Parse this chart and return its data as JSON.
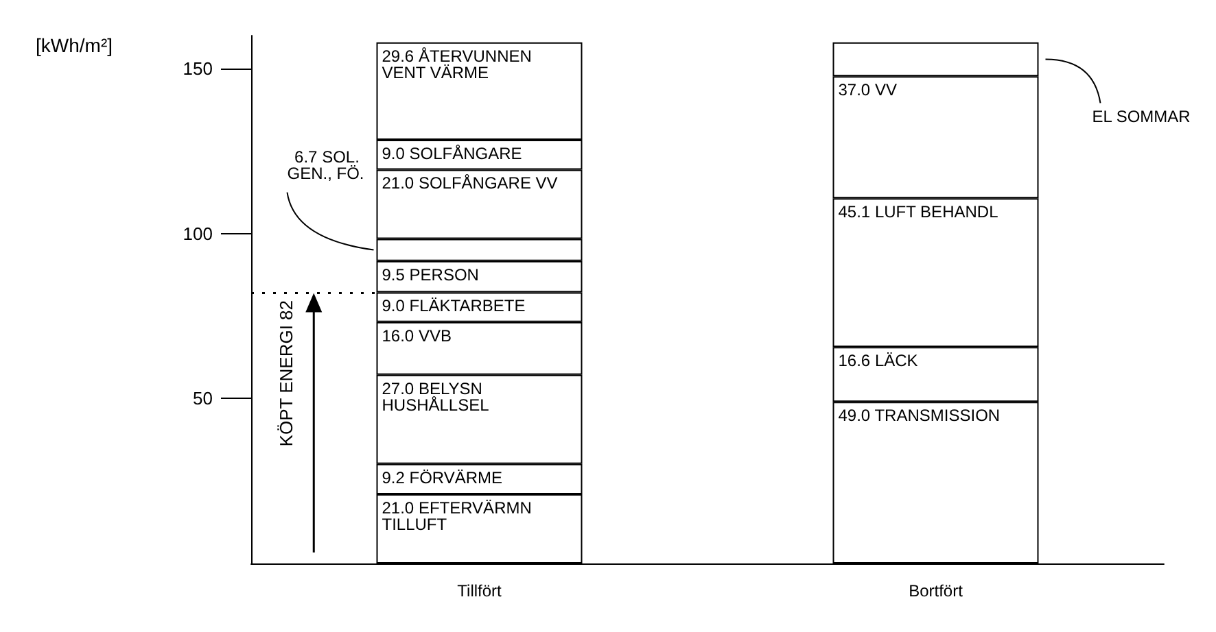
{
  "chart_data": {
    "type": "bar",
    "ylabel": "[kWh/m²]",
    "categories": [
      "Tillfört",
      "Bortfört"
    ],
    "stacked": true,
    "ylim": [
      0,
      160
    ],
    "yticks": [
      50,
      100,
      150
    ],
    "grid": false,
    "legend": false,
    "series": [
      {
        "name": "EFTERVÄRMN TILLUFT",
        "color": "#ffffff",
        "values": [
          21.0,
          null
        ],
        "value_labels": [
          "21.0",
          null
        ]
      },
      {
        "name": "FÖRVÄRME",
        "color": "#ffffff",
        "values": [
          9.2,
          null
        ],
        "value_labels": [
          "9.2",
          null
        ]
      },
      {
        "name": "BELYSN HUSHÅLLSEL",
        "color": "#ffffff",
        "values": [
          27.0,
          null
        ],
        "value_labels": [
          "27.0",
          null
        ]
      },
      {
        "name": "VVB",
        "color": "#ffffff",
        "values": [
          16.0,
          null
        ],
        "value_labels": [
          "16.0",
          null
        ]
      },
      {
        "name": "FLÄKTARBETE",
        "color": "#ffffff",
        "values": [
          9.0,
          null
        ],
        "value_labels": [
          "9.0",
          null
        ]
      },
      {
        "name": "PERSON",
        "color": "#ffffff",
        "values": [
          9.5,
          null
        ],
        "value_labels": [
          "9.5",
          null
        ]
      },
      {
        "name": "SOL. GEN., FÖ.",
        "color": "#ffffff",
        "values": [
          6.7,
          null
        ],
        "value_labels": [
          "6.7",
          null
        ]
      },
      {
        "name": "SOLFÅNGARE VV",
        "color": "#ffffff",
        "values": [
          21.0,
          null
        ],
        "value_labels": [
          "21.0",
          null
        ]
      },
      {
        "name": "SOLFÅNGARE",
        "color": "#ffffff",
        "values": [
          9.0,
          null
        ],
        "value_labels": [
          "9.0",
          null
        ]
      },
      {
        "name": "ÅTERVUNNEN VENT VÄRME",
        "color": "#ffffff",
        "values": [
          29.6,
          null
        ],
        "value_labels": [
          "29.6",
          null
        ]
      },
      {
        "name": "TRANSMISSION",
        "color": "#ffffff",
        "values": [
          null,
          49.0
        ],
        "value_labels": [
          null,
          "49.0"
        ]
      },
      {
        "name": "LÄCK",
        "color": "#ffffff",
        "values": [
          null,
          16.6
        ],
        "value_labels": [
          null,
          "16.6"
        ]
      },
      {
        "name": "LUFT BEHANDL",
        "color": "#ffffff",
        "values": [
          null,
          45.1
        ],
        "value_labels": [
          null,
          "45.1"
        ]
      },
      {
        "name": "VV",
        "color": "#ffffff",
        "values": [
          null,
          37.0
        ],
        "value_labels": [
          null,
          "37.0"
        ]
      },
      {
        "name": "EL SOMMAR",
        "color": "#ffffff",
        "values": [
          null,
          10.3
        ]
      }
    ],
    "ref_lines": [
      {
        "axis": "y",
        "value": 82,
        "label": "KÖPT ENERGI 82",
        "line_style": "dotted"
      }
    ]
  }
}
